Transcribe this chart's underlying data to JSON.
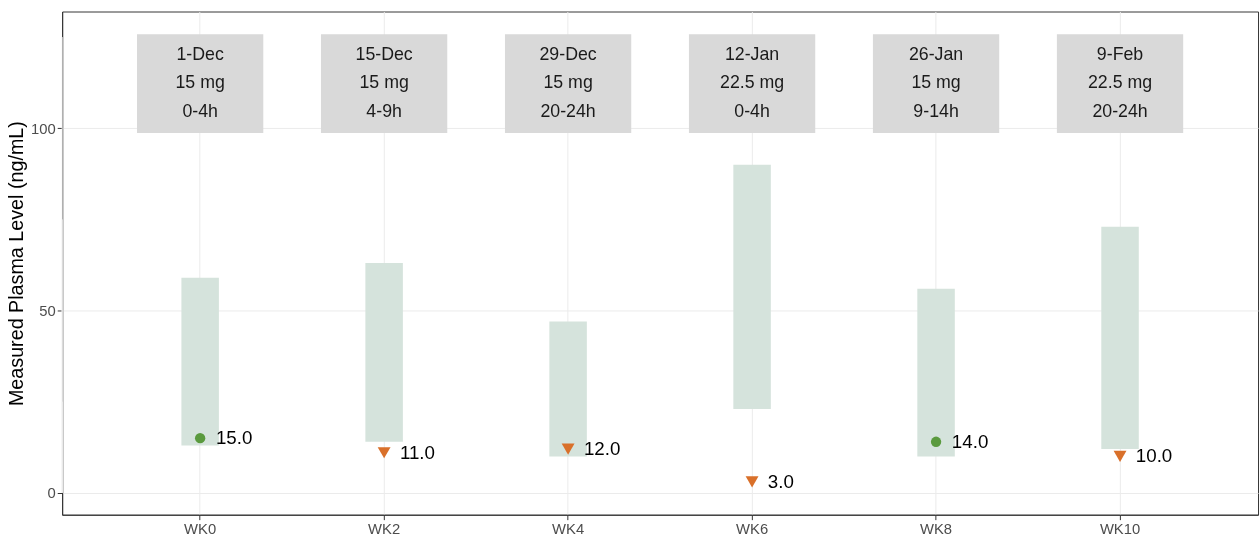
{
  "chart_data": {
    "type": "bar",
    "ylabel": "Measured Plasma Level (ng/mL)",
    "categories": [
      "WK0",
      "WK2",
      "WK4",
      "WK6",
      "WK8",
      "WK10"
    ],
    "series": [
      {
        "color": "#d5e3dc",
        "base": [
          13,
          14,
          10,
          23,
          10,
          12
        ],
        "values": [
          46,
          49,
          37,
          67,
          46,
          61
        ]
      },
      {
        "type": "scatter",
        "color": "#5a9a3e",
        "marker": "circle",
        "values": [
          15,
          null,
          null,
          null,
          14,
          null
        ],
        "value_labels": [
          "15.0",
          null,
          null,
          null,
          "14.0",
          null
        ]
      },
      {
        "type": "scatter",
        "color": "#d9702a",
        "marker": "triangle",
        "values": [
          null,
          11,
          12,
          3,
          null,
          10
        ],
        "value_labels": [
          null,
          "11.0",
          "12.0",
          "3.0",
          null,
          "10.0"
        ]
      }
    ],
    "annotations": [
      "1-Dec\n15 mg\n0-4h",
      "15-Dec\n15 mg\n4-9h",
      "29-Dec\n15 mg\n20-24h",
      "12-Jan\n22.5 mg\n0-4h",
      "26-Jan\n15 mg\n9-14h",
      "9-Feb\n22.5 mg\n20-24h"
    ],
    "ylim": [
      -6,
      132
    ],
    "yticks": [
      0,
      50,
      100
    ],
    "grid": true
  }
}
